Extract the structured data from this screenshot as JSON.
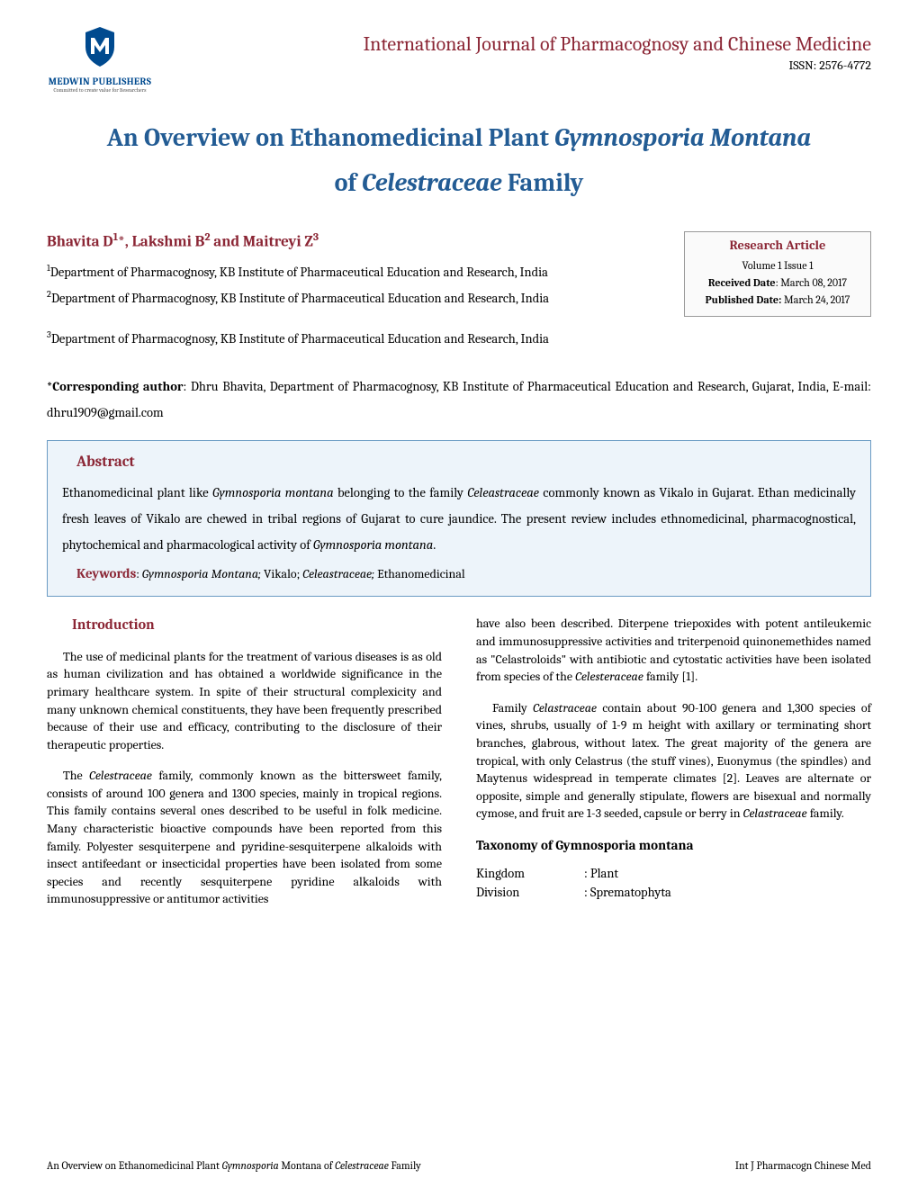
{
  "header": {
    "publisher_name": "MEDWIN PUBLISHERS",
    "publisher_tagline": "Committed to create value for Researchers",
    "journal_title": "International Journal of Pharmacognosy and Chinese Medicine",
    "issn": "ISSN: 2576-4772",
    "logo_shield_color": "#004a8f",
    "logo_m_color": "#ffffff"
  },
  "title": {
    "prefix": "An Overview on Ethanomedicinal Plant ",
    "italic1": "Gymnosporia Montana",
    "middle": " of ",
    "italic2": "Celestraceae",
    "suffix": " Family"
  },
  "authors_html": "Bhavita D<sup>1</sup>*, Lakshmi B<sup>2</sup> and Maitreyi Z<sup>3</sup>",
  "affiliations": [
    "<sup>1</sup>Department of Pharmacognosy, KB Institute of Pharmaceutical Education and Research, India",
    "<sup>2</sup>Department of Pharmacognosy, KB Institute of Pharmaceutical Education and Research, India",
    "<sup>3</sup>Department of Pharmacognosy, KB Institute of Pharmaceutical Education and Research, India"
  ],
  "info_box": {
    "title": "Research Article",
    "volume": "Volume 1 Issue 1",
    "received_label": "Received Date",
    "received_date": ": March 08, 2017",
    "published_label": "Published Date:",
    "published_date": " March 24, 2017"
  },
  "corresponding_html": "*<b>Corresponding author</b>: Dhru Bhavita, Department of Pharmacognosy, KB Institute of Pharmaceutical Education and Research, Gujarat, India, E-mail: dhru1909@gmail.com",
  "abstract": {
    "heading": "Abstract",
    "text_html": "Ethanomedicinal plant like <em>Gymnosporia montana</em> belonging to the family <em>Celeastraceae</em> commonly known as Vikalo in Gujarat. Ethan medicinally fresh leaves of Vikalo are chewed in tribal regions of Gujarat to cure jaundice. The present review includes ethnomedicinal, pharmacognostical, phytochemical and pharmacological activity of <em>Gymnosporia montana</em>.",
    "keywords_label": "Keywords",
    "keywords_html": ": <em>Gymnosporia Montana;</em> Vikalo; <em>Celeastraceae;</em> Ethanomedicinal"
  },
  "body": {
    "intro_heading": "Introduction",
    "left_paras": [
      "The use of medicinal plants for the treatment of various diseases is as old as human civilization and has obtained a worldwide significance in the primary healthcare system. In spite of their structural complexicity and many unknown chemical constituents, they have been frequently prescribed because of their use and efficacy, contributing to the disclosure of their therapeutic properties.",
      "The <em>Celestraceae</em> family, commonly known as the bittersweet family, consists of around 100 genera and 1300 species, mainly in tropical regions. This family contains several ones described to be useful in folk medicine. Many characteristic bioactive compounds have been reported from this family. Polyester sesquiterpene and pyridine-sesquiterpene alkaloids with insect antifeedant or insecticidal properties have been isolated from some species and recently sesquiterpene pyridine alkaloids with immunosuppressive or antitumor activities"
    ],
    "right_paras": [
      "have also been described. Diterpene triepoxides with potent antileukemic and immunosuppressive activities and triterpenoid quinonemethides named as \"Celastroloids\" with antibiotic and cytostatic activities have been isolated from species of the <em>Celesteraceae</em> family [1].",
      "Family <em>Celastraceae</em> contain about 90-100 genera and 1,300 species of vines, shrubs, usually of 1-9 m height with axillary or terminating short branches, glabrous, without latex. The great majority of the genera are tropical, with only Celastrus (the stuff vines), Euonymus (the spindles) and Maytenus widespread in temperate climates [2]. Leaves are alternate or opposite, simple and generally stipulate, flowers are bisexual and normally cymose, and fruit are 1-3 seeded, capsule or berry in <em>Celastraceae</em> family."
    ],
    "taxonomy_heading": "Taxonomy of Gymnosporia montana",
    "taxonomy": [
      {
        "label": "Kingdom",
        "value": ": Plant"
      },
      {
        "label": "Division",
        "value": ": Sprematophyta"
      }
    ]
  },
  "footer": {
    "left_html": "An Overview on Ethanomedicinal Plant <em>Gymnosporia</em> Montana of <em>Celestraceae</em> Family",
    "right": "Int J Pharmacogn Chinese Med"
  },
  "colors": {
    "title_color": "#235c94",
    "heading_color": "#8b2635",
    "abstract_bg": "#edf4fa",
    "abstract_border": "#6b9bc4"
  }
}
